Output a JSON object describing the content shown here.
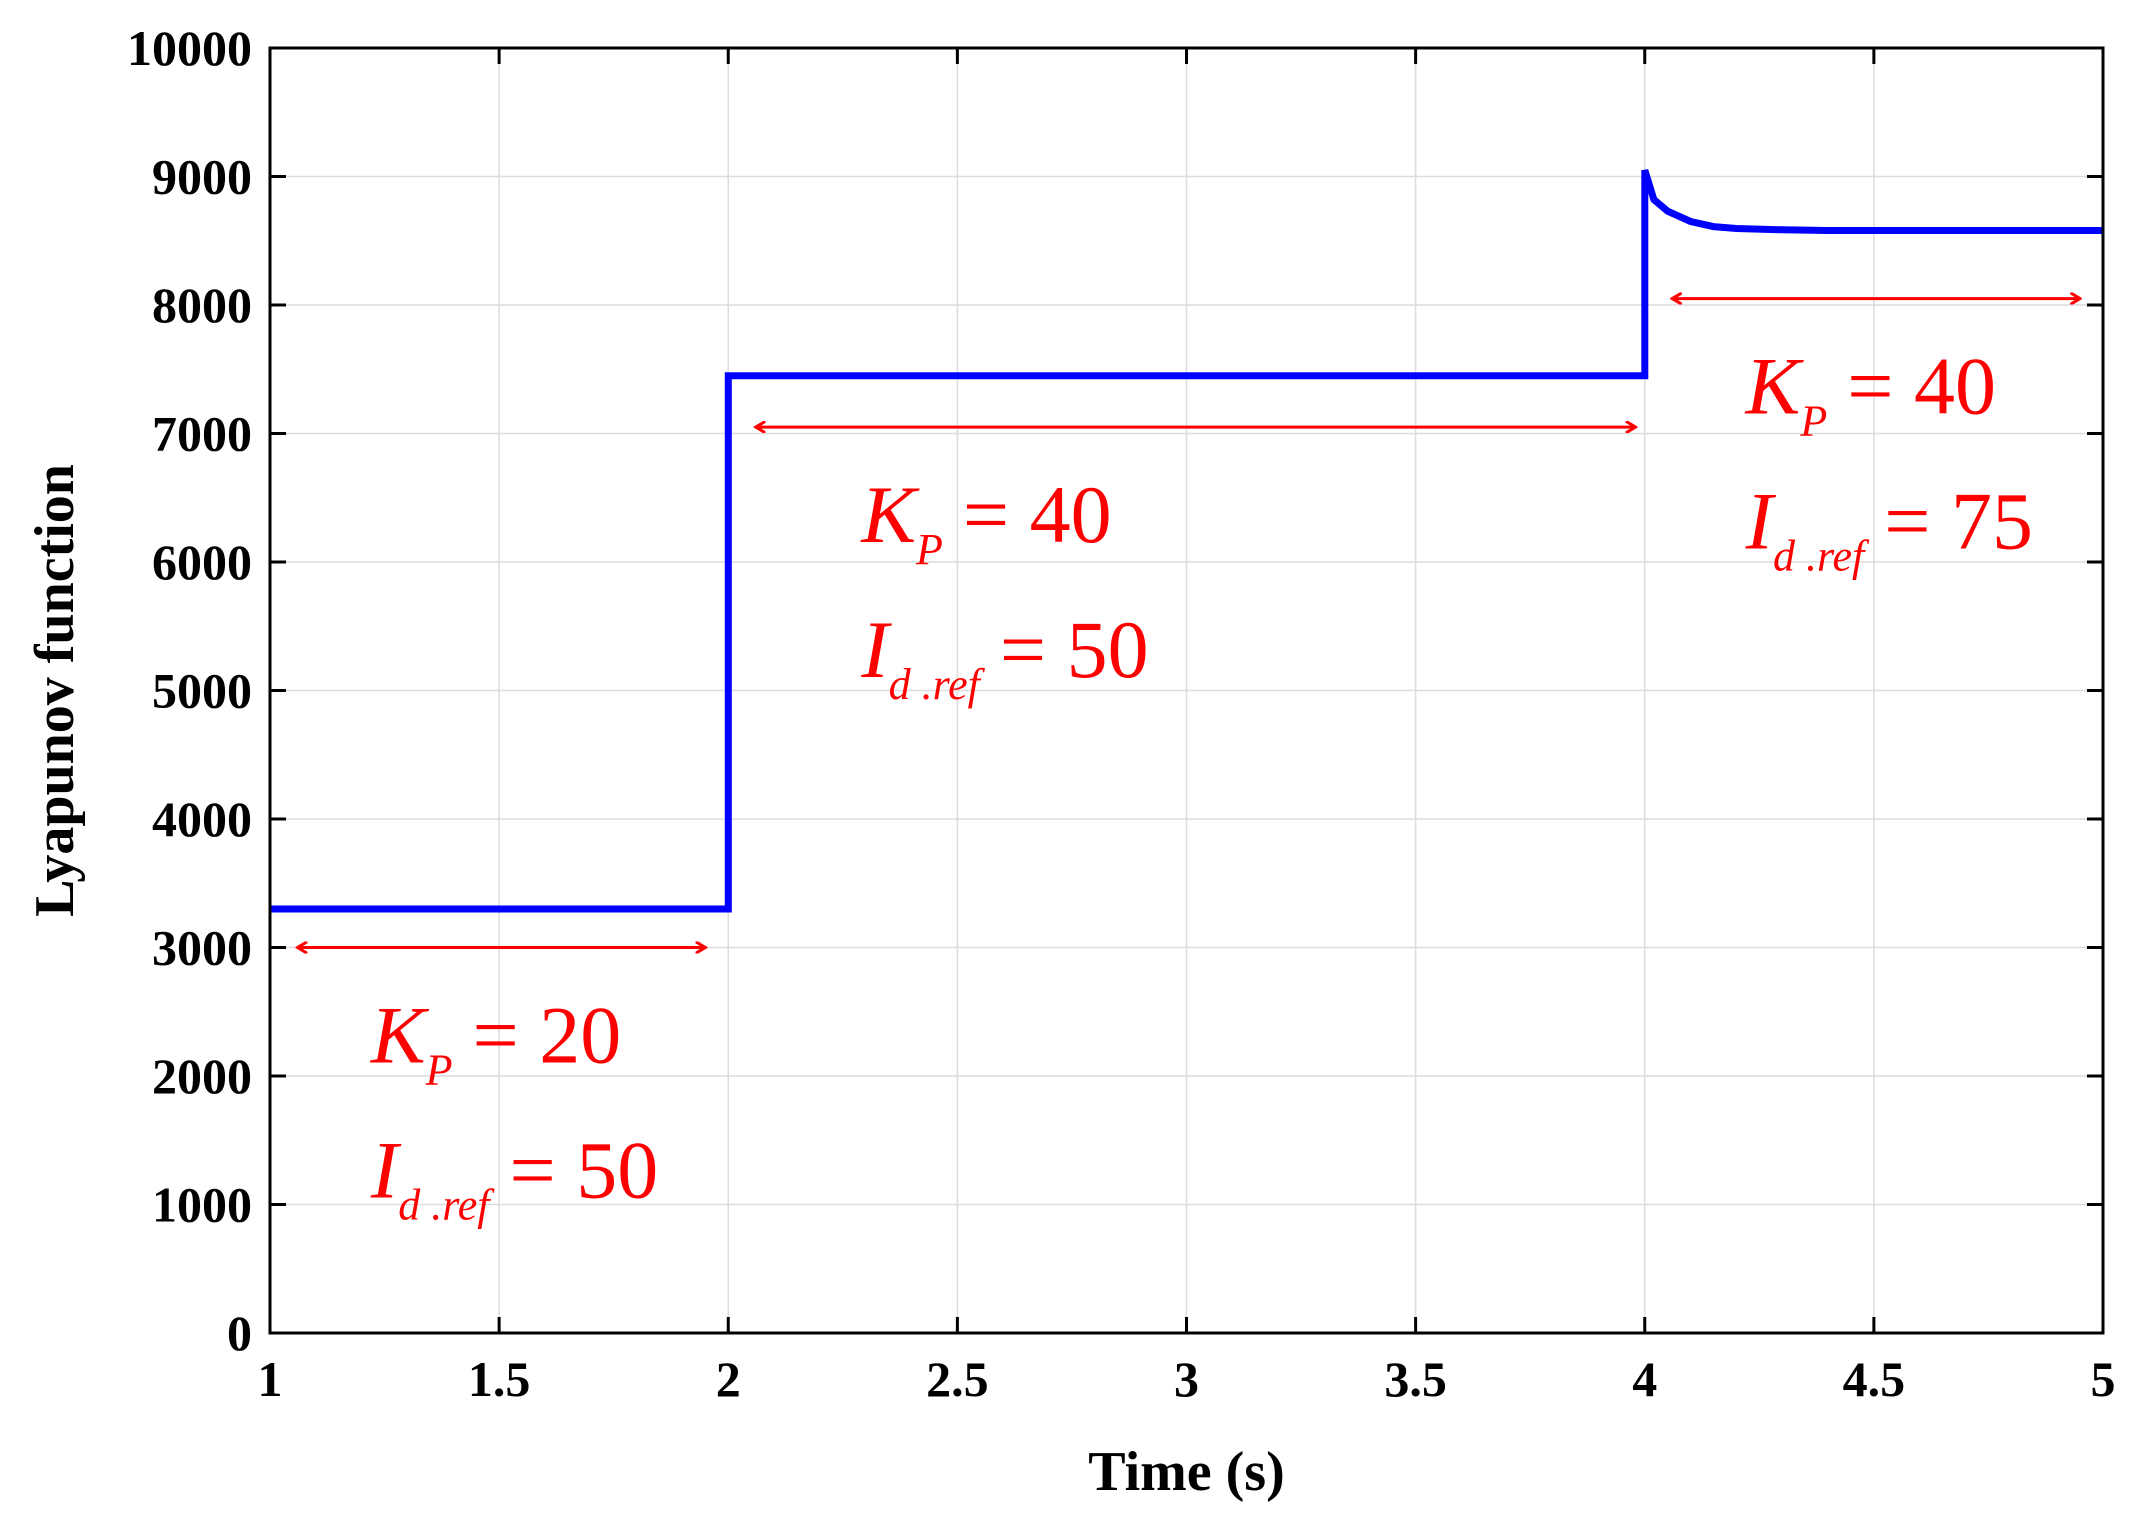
{
  "chart_data": {
    "type": "line",
    "xlabel": "Time (s)",
    "ylabel": "Lyapunov function",
    "xlim": [
      1,
      5
    ],
    "ylim": [
      0,
      10000
    ],
    "x_ticks": [
      "1",
      "1.5",
      "2",
      "2.5",
      "3",
      "3.5",
      "4",
      "4.5",
      "5"
    ],
    "y_ticks": [
      "0",
      "1000",
      "2000",
      "3000",
      "4000",
      "5000",
      "6000",
      "7000",
      "8000",
      "9000",
      "10000"
    ],
    "grid": true,
    "series": [
      {
        "color": "#0000ff",
        "x": [
          1,
          2,
          2,
          4,
          4,
          4.02,
          4.05,
          4.1,
          4.15,
          4.2,
          4.3,
          4.4,
          5
        ],
        "y": [
          3300,
          3300,
          7450,
          7450,
          9050,
          8820,
          8730,
          8650,
          8610,
          8595,
          8585,
          8580,
          8580
        ]
      }
    ],
    "annotations": [
      {
        "x_range": [
          1.06,
          1.95
        ],
        "y": 3000,
        "kp_label": "K",
        "kp_sub": "P",
        "kp_value": "= 20",
        "id_label": "I",
        "id_sub": "d .ref",
        "id_value": "= 50"
      },
      {
        "x_range": [
          2.06,
          3.98
        ],
        "y": 7050,
        "kp_label": "K",
        "kp_sub": "P",
        "kp_value": "= 40",
        "id_label": "I",
        "id_sub": "d .ref",
        "id_value": "= 50"
      },
      {
        "x_range": [
          4.06,
          4.95
        ],
        "y": 8050,
        "kp_label": "K",
        "kp_sub": "P",
        "kp_value": "= 40",
        "id_label": "I",
        "id_sub": "d .ref",
        "id_value": "= 75"
      }
    ],
    "colors": {
      "line": "#0000ff",
      "annotation": "#ff0000",
      "grid": "#dcdcdc",
      "axes": "#000000"
    }
  }
}
